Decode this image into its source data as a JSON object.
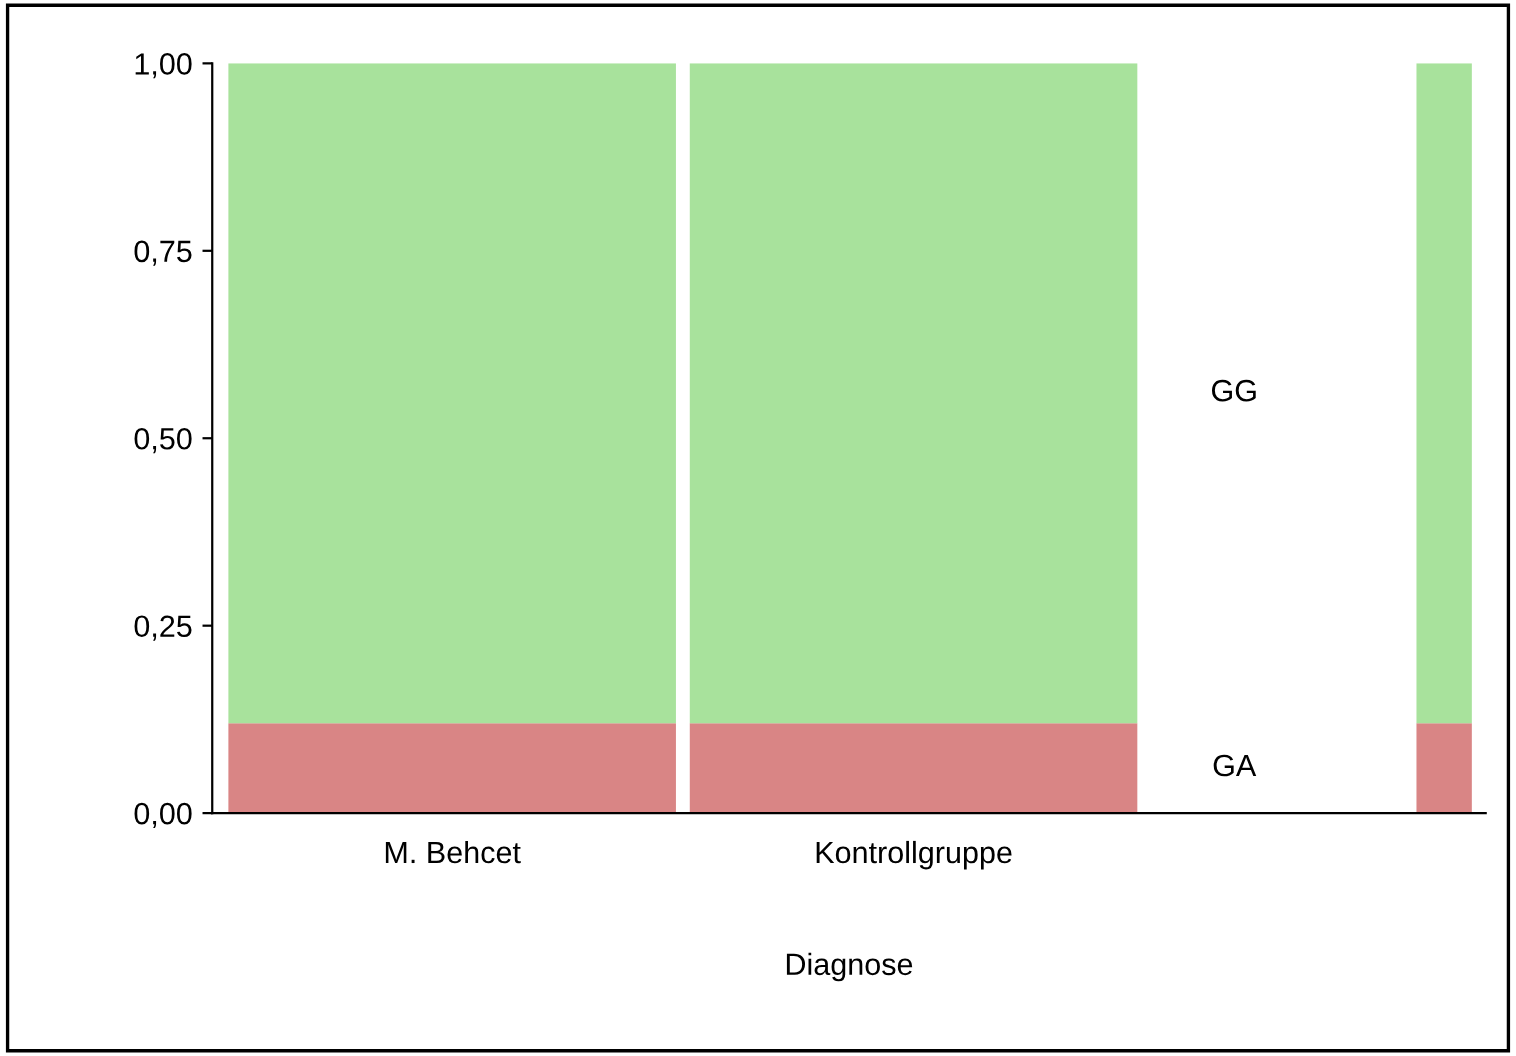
{
  "chart_data": {
    "type": "bar",
    "stacked": true,
    "xlabel": "Diagnose",
    "categories": [
      "M. Behcet",
      "Kontrollgruppe",
      null
    ],
    "series": [
      {
        "name": "GA",
        "color": "#d98585",
        "values": [
          0.12,
          0.12,
          0.12
        ]
      },
      {
        "name": "GG",
        "color": "#a8e29c",
        "values": [
          0.88,
          0.88,
          0.88
        ]
      }
    ],
    "ylim": [
      0,
      1
    ],
    "yticks": [
      {
        "value": 0,
        "label": "0,00"
      },
      {
        "value": 0.25,
        "label": "0,25"
      },
      {
        "value": 0.5,
        "label": "0,50"
      },
      {
        "value": 0.75,
        "label": "0,75"
      },
      {
        "value": 1,
        "label": "1,00"
      }
    ],
    "grid": false,
    "legend": false
  }
}
